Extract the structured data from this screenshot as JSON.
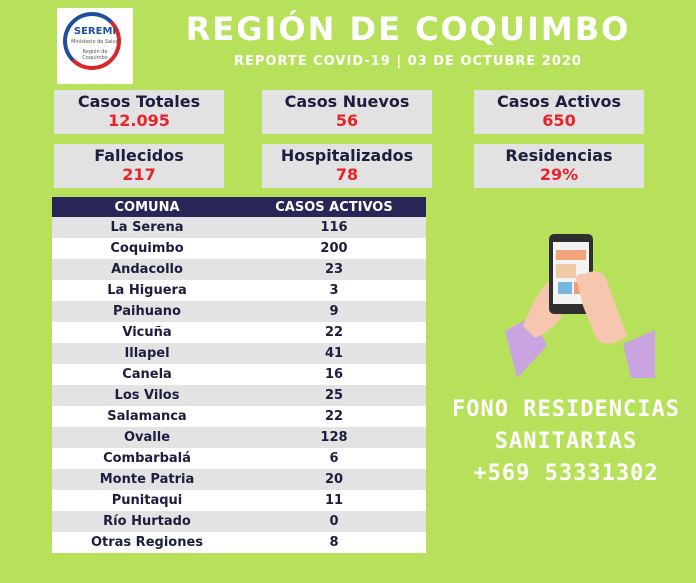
{
  "logo": {
    "name": "SEREMI",
    "line1": "Ministerio de Salud",
    "line2": "Región de",
    "line3": "Coquimbo"
  },
  "header": {
    "title": "REGIÓN DE COQUIMBO",
    "subtitle": "REPORTE COVID-19 | 03 DE OCTUBRE 2020"
  },
  "stats": {
    "casos_totales": {
      "label": "Casos Totales",
      "value": "12.095"
    },
    "casos_nuevos": {
      "label": "Casos Nuevos",
      "value": "56"
    },
    "casos_activos": {
      "label": "Casos Activos",
      "value": "650"
    },
    "fallecidos": {
      "label": "Fallecidos",
      "value": "217"
    },
    "hospitalizados": {
      "label": "Hospitalizados",
      "value": "78"
    },
    "residencias": {
      "label": "Residencias",
      "value": "29%"
    }
  },
  "table": {
    "headers": [
      "COMUNA",
      "CASOS ACTIVOS"
    ],
    "rows": [
      {
        "comuna": "La Serena",
        "casos": "116"
      },
      {
        "comuna": "Coquimbo",
        "casos": "200"
      },
      {
        "comuna": "Andacollo",
        "casos": "23"
      },
      {
        "comuna": "La Higuera",
        "casos": "3"
      },
      {
        "comuna": "Paihuano",
        "casos": "9"
      },
      {
        "comuna": "Vicuña",
        "casos": "22"
      },
      {
        "comuna": "Illapel",
        "casos": "41"
      },
      {
        "comuna": "Canela",
        "casos": "16"
      },
      {
        "comuna": "Los Vilos",
        "casos": "25"
      },
      {
        "comuna": "Salamanca",
        "casos": "22"
      },
      {
        "comuna": "Ovalle",
        "casos": "128"
      },
      {
        "comuna": "Combarbalá",
        "casos": "6"
      },
      {
        "comuna": "Monte Patria",
        "casos": "20"
      },
      {
        "comuna": "Punitaqui",
        "casos": "11"
      },
      {
        "comuna": "Río Hurtado",
        "casos": "0"
      },
      {
        "comuna": "Otras Regiones",
        "casos": "8"
      }
    ]
  },
  "fono": {
    "line1": "FONO RESIDENCIAS",
    "line2": "SANITARIAS",
    "line3": "+569 53331302"
  },
  "colors": {
    "background": "#b7e15b",
    "header_row": "#272657",
    "value_red": "#e8232a"
  },
  "icons": {
    "illustration": "hands-holding-phone-icon"
  }
}
